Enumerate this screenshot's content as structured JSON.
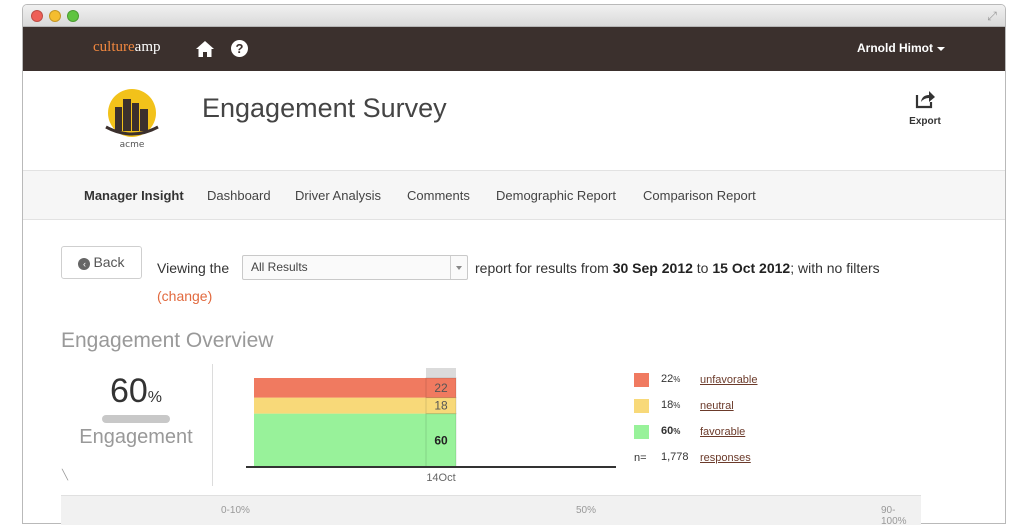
{
  "window": {
    "controls": [
      "close",
      "minimize",
      "maximize"
    ]
  },
  "topnav": {
    "brand_part1": "culture",
    "brand_part2": "amp",
    "home_icon": "home-icon",
    "help_icon": "help-icon",
    "help_glyph": "?",
    "user_name": "Arnold Himot"
  },
  "header": {
    "company_logo_text": "acme",
    "title": "Engagement Survey",
    "export_label": "Export"
  },
  "subnav": {
    "tabs": [
      {
        "label": "Manager Insight",
        "active": true
      },
      {
        "label": "Dashboard",
        "active": false
      },
      {
        "label": "Driver Analysis",
        "active": false
      },
      {
        "label": "Comments",
        "active": false
      },
      {
        "label": "Demographic Report",
        "active": false
      },
      {
        "label": "Comparison Report",
        "active": false
      }
    ]
  },
  "filters": {
    "back_label": "Back",
    "viewing_label": "Viewing the",
    "selected_report": "All Results",
    "report_prefix": "report for results from",
    "date_from": "30 Sep 2012",
    "date_to_word": "to",
    "date_to": "15 Oct 2012",
    "filter_suffix": "; with no filters",
    "change_label": "(change)"
  },
  "overview": {
    "section_title": "Engagement Overview",
    "score_value": "60",
    "score_unit": "%",
    "score_label": "Engagement"
  },
  "chart_data": {
    "type": "area",
    "categories": [
      "14Oct"
    ],
    "series": [
      {
        "name": "favorable",
        "values": [
          60
        ],
        "color": "#98f29a"
      },
      {
        "name": "neutral",
        "values": [
          18
        ],
        "color": "#f8d979"
      },
      {
        "name": "unfavorable",
        "values": [
          22
        ],
        "color": "#f07a60"
      }
    ],
    "ylim": [
      0,
      100
    ],
    "xlabel": "",
    "ylabel": ""
  },
  "legend": {
    "items": [
      {
        "value": "22",
        "unit": "%",
        "label": "unfavorable",
        "color": "#f07a60"
      },
      {
        "value": "18",
        "unit": "%",
        "label": "neutral",
        "color": "#f8d979"
      },
      {
        "value": "60",
        "unit": "%",
        "label": "favorable",
        "color": "#98f29a"
      }
    ],
    "responses_prefix": "n=",
    "responses_count": "1,778",
    "responses_label": "responses"
  },
  "bottom_scale": {
    "left": "0-10%",
    "mid": "50%",
    "right": "90-100%"
  },
  "colors": {
    "topnav_bg": "#3b302d",
    "accent": "#e26a3f"
  }
}
